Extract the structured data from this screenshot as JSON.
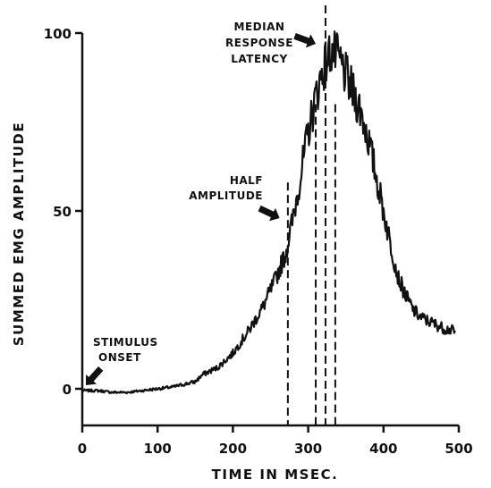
{
  "chart_data": {
    "type": "line",
    "title": "",
    "xlabel": "TIME IN MSEC.",
    "ylabel": "SUMMED EMG AMPLITUDE",
    "xlim": [
      0,
      500
    ],
    "ylim": [
      -10,
      102
    ],
    "x_ticks": [
      0,
      100,
      200,
      300,
      400,
      500
    ],
    "y_ticks": [
      0,
      50,
      100
    ],
    "grid": false,
    "colors": {
      "line": "#111111",
      "background": "#ffffff"
    },
    "series": [
      {
        "x": [
          0,
          20,
          40,
          60,
          80,
          100,
          120,
          140,
          150,
          160,
          180,
          200,
          220,
          240,
          255,
          270,
          280,
          290,
          300,
          310,
          320,
          330,
          340,
          350,
          360,
          370,
          380,
          390,
          400,
          410,
          420,
          430,
          440,
          450,
          460,
          470,
          480,
          490,
          495
        ],
        "y": [
          -0.5,
          -0.5,
          -1,
          -1,
          -0.5,
          0,
          0.5,
          1.5,
          2,
          4,
          6,
          10,
          16,
          23,
          30,
          38,
          48,
          60,
          72,
          82,
          90,
          95,
          93,
          88,
          83,
          78,
          70,
          60,
          50,
          40,
          31,
          26,
          22,
          20,
          19,
          18,
          17,
          16.5,
          16
        ]
      }
    ],
    "reference_lines_x": [
      273,
      310,
      323,
      336
    ],
    "annotations": [
      {
        "id": "stimulus",
        "lines": [
          "STIMULUS",
          "ONSET"
        ],
        "x": 0,
        "y": 0
      },
      {
        "id": "half",
        "lines": [
          "HALF",
          "AMPLITUDE"
        ],
        "x": 273,
        "y": 50
      },
      {
        "id": "median",
        "lines": [
          "MEDIAN",
          "RESPONSE",
          "LATENCY"
        ],
        "x": 323,
        "y": 97
      }
    ]
  }
}
